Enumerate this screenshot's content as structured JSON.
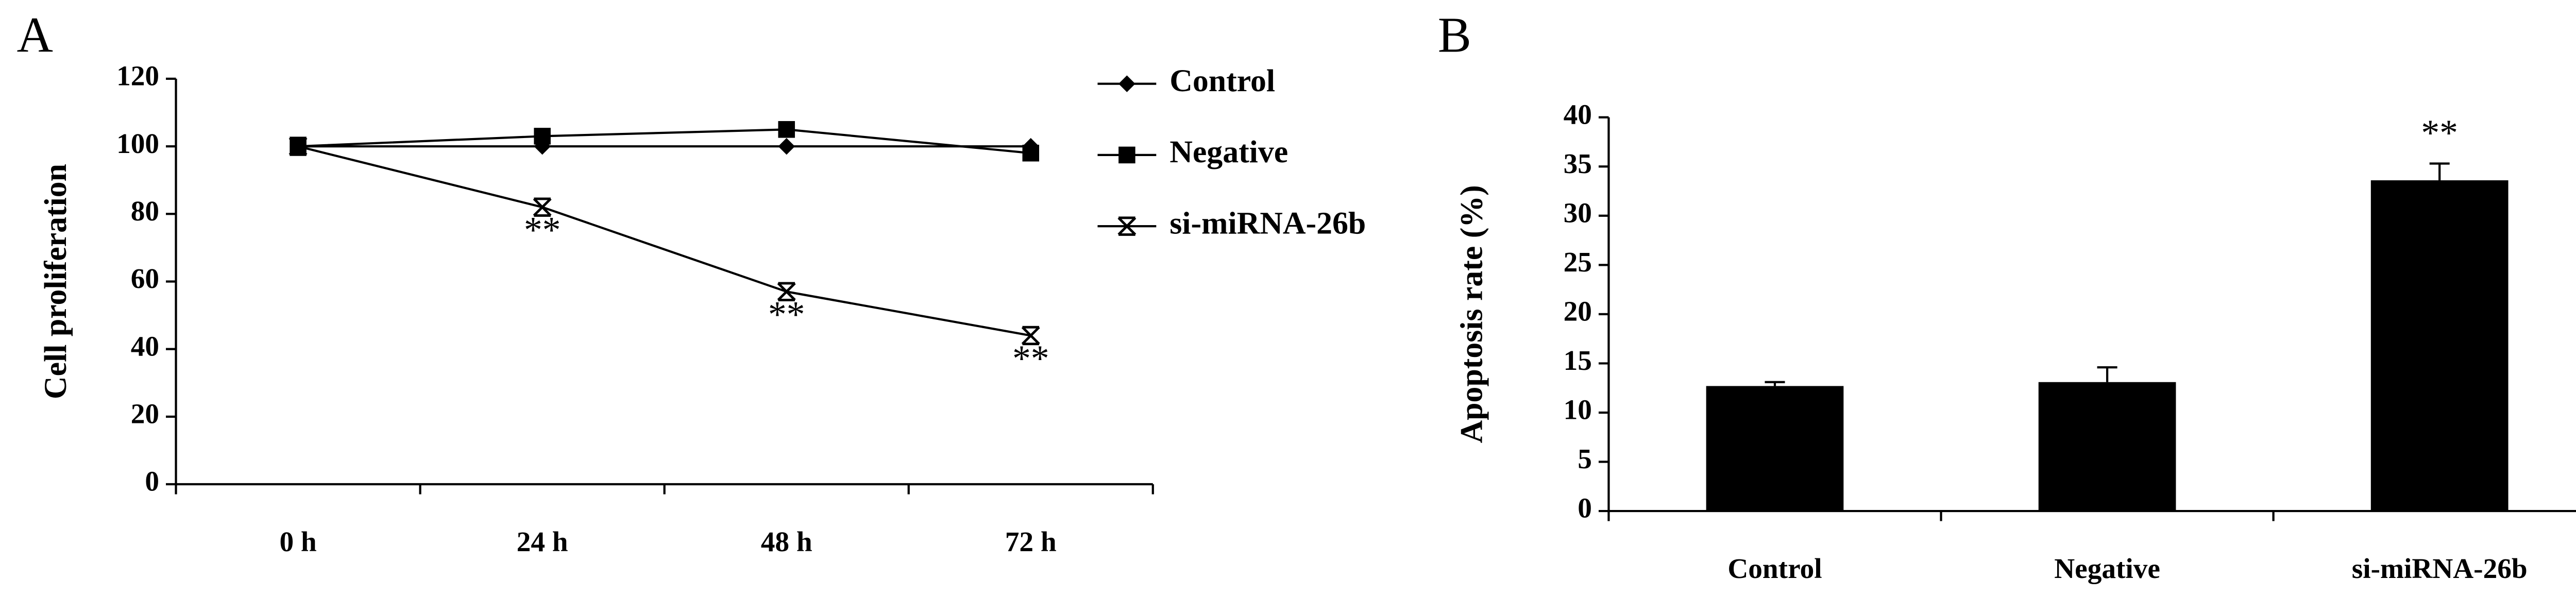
{
  "chart_data": [
    {
      "type": "line",
      "panel_label": "A",
      "y_label": "Cell proliferation",
      "categories": [
        "0 h",
        "24 h",
        "48 h",
        "72 h"
      ],
      "series": [
        {
          "name": "Control",
          "color": "#000000",
          "marker": "diamond",
          "values": [
            100,
            100,
            100,
            100
          ]
        },
        {
          "name": "Negative",
          "color": "#000000",
          "marker": "square",
          "values": [
            100,
            103,
            105,
            98
          ]
        },
        {
          "name": "si-miRNA-26b",
          "color": "#000000",
          "marker": "x",
          "values": [
            100,
            82,
            57,
            44
          ],
          "annotations": [
            null,
            "**",
            "**",
            "**"
          ]
        }
      ],
      "ylim": [
        0,
        120
      ],
      "yticks": [
        0,
        20,
        40,
        60,
        80,
        100,
        120
      ],
      "legend": "right"
    },
    {
      "type": "bar",
      "panel_label": "B",
      "y_label": "Apoptosis rate (%)",
      "categories": [
        "Control",
        "Negative",
        "si-miRNA-26b"
      ],
      "values": [
        12.7,
        13.1,
        33.6
      ],
      "errors": [
        0.4,
        1.5,
        1.7
      ],
      "color": "#000000",
      "annotations": [
        null,
        null,
        "**"
      ],
      "ylim": [
        0,
        40
      ],
      "yticks": [
        0,
        5,
        10,
        15,
        20,
        25,
        30,
        35,
        40
      ]
    }
  ]
}
